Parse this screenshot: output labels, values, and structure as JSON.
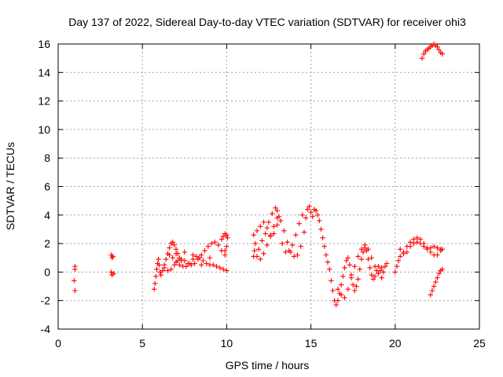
{
  "chart_data": {
    "type": "scatter",
    "title": "Day 137 of 2022, Sidereal Day-to-day VTEC variation (SDTVAR) for receiver ohi3",
    "xlabel": "GPS time / hours",
    "ylabel": "SDTVAR / TECUs",
    "xlim": [
      0,
      25
    ],
    "ylim": [
      -4,
      16
    ],
    "xticks": [
      0,
      5,
      10,
      15,
      20,
      25
    ],
    "yticks": [
      -4,
      -2,
      0,
      2,
      4,
      6,
      8,
      10,
      12,
      14,
      16
    ],
    "grid": true,
    "marker": "+",
    "color": "#ff0000",
    "series": [
      {
        "name": "SDTVAR",
        "points": [
          [
            1.0,
            0.4
          ],
          [
            1.0,
            0.2
          ],
          [
            0.95,
            -0.6
          ],
          [
            1.0,
            -1.3
          ],
          [
            3.15,
            1.2
          ],
          [
            3.2,
            1.0
          ],
          [
            3.25,
            1.1
          ],
          [
            3.15,
            0.0
          ],
          [
            3.2,
            -0.2
          ],
          [
            3.3,
            -0.1
          ],
          [
            5.7,
            -1.2
          ],
          [
            5.75,
            -0.8
          ],
          [
            5.8,
            -0.3
          ],
          [
            5.85,
            0.2
          ],
          [
            5.9,
            0.6
          ],
          [
            5.95,
            0.9
          ],
          [
            6.0,
            0.5
          ],
          [
            6.05,
            0.0
          ],
          [
            6.1,
            -0.2
          ],
          [
            6.2,
            0.1
          ],
          [
            6.3,
            0.5
          ],
          [
            6.4,
            0.9
          ],
          [
            6.5,
            1.3
          ],
          [
            6.6,
            1.7
          ],
          [
            6.7,
            2.0
          ],
          [
            6.8,
            2.1
          ],
          [
            6.9,
            1.9
          ],
          [
            7.0,
            1.6
          ],
          [
            7.1,
            1.3
          ],
          [
            7.2,
            1.0
          ],
          [
            7.3,
            0.8
          ],
          [
            6.3,
            0.3
          ],
          [
            6.5,
            0.1
          ],
          [
            6.7,
            0.2
          ],
          [
            6.9,
            0.5
          ],
          [
            7.1,
            0.8
          ],
          [
            7.3,
            0.9
          ],
          [
            7.5,
            0.8
          ],
          [
            7.7,
            0.6
          ],
          [
            7.9,
            0.5
          ],
          [
            8.1,
            0.6
          ],
          [
            8.3,
            0.9
          ],
          [
            8.5,
            1.2
          ],
          [
            8.7,
            1.5
          ],
          [
            8.9,
            1.8
          ],
          [
            9.1,
            2.0
          ],
          [
            9.3,
            2.1
          ],
          [
            9.5,
            1.9
          ],
          [
            9.7,
            1.5
          ],
          [
            9.9,
            1.2
          ],
          [
            6.6,
            1.2
          ],
          [
            6.8,
            1.0
          ],
          [
            7.0,
            0.7
          ],
          [
            7.2,
            0.5
          ],
          [
            7.4,
            0.4
          ],
          [
            7.6,
            0.4
          ],
          [
            7.8,
            0.6
          ],
          [
            8.0,
            0.9
          ],
          [
            8.2,
            1.1
          ],
          [
            8.4,
            1.0
          ],
          [
            8.6,
            0.8
          ],
          [
            8.8,
            0.6
          ],
          [
            9.0,
            0.5
          ],
          [
            9.2,
            0.5
          ],
          [
            9.4,
            0.4
          ],
          [
            9.6,
            0.3
          ],
          [
            9.8,
            0.2
          ],
          [
            10.0,
            0.1
          ],
          [
            7.0,
            1.3
          ],
          [
            7.5,
            1.4
          ],
          [
            8.0,
            1.2
          ],
          [
            8.5,
            0.5
          ],
          [
            9.0,
            1.0
          ],
          [
            9.7,
            2.3
          ],
          [
            9.8,
            2.5
          ],
          [
            9.9,
            2.7
          ],
          [
            10.0,
            2.6
          ],
          [
            10.05,
            2.4
          ],
          [
            10.0,
            1.8
          ],
          [
            9.9,
            1.5
          ],
          [
            11.6,
            1.1
          ],
          [
            11.65,
            1.5
          ],
          [
            11.7,
            2.0
          ],
          [
            11.6,
            2.6
          ],
          [
            11.8,
            2.9
          ],
          [
            12.0,
            3.2
          ],
          [
            12.2,
            3.5
          ],
          [
            12.4,
            3.1
          ],
          [
            12.6,
            2.5
          ],
          [
            12.8,
            2.7
          ],
          [
            13.0,
            3.3
          ],
          [
            13.1,
            3.9
          ],
          [
            13.0,
            4.3
          ],
          [
            12.9,
            4.5
          ],
          [
            12.7,
            4.1
          ],
          [
            12.5,
            3.5
          ],
          [
            12.3,
            2.7
          ],
          [
            12.1,
            2.2
          ],
          [
            11.9,
            1.6
          ],
          [
            11.8,
            1.1
          ],
          [
            12.0,
            0.9
          ],
          [
            12.2,
            1.3
          ],
          [
            12.4,
            1.9
          ],
          [
            12.6,
            2.6
          ],
          [
            12.8,
            3.2
          ],
          [
            13.0,
            3.8
          ],
          [
            13.2,
            3.6
          ],
          [
            13.4,
            2.9
          ],
          [
            13.6,
            2.1
          ],
          [
            13.8,
            1.4
          ],
          [
            14.0,
            1.1
          ],
          [
            14.2,
            1.2
          ],
          [
            14.4,
            1.8
          ],
          [
            14.6,
            2.8
          ],
          [
            14.7,
            3.8
          ],
          [
            14.8,
            4.4
          ],
          [
            14.9,
            4.6
          ],
          [
            15.0,
            4.2
          ],
          [
            14.5,
            4.0
          ],
          [
            14.3,
            3.4
          ],
          [
            14.1,
            2.6
          ],
          [
            13.9,
            1.9
          ],
          [
            13.7,
            1.5
          ],
          [
            13.5,
            1.4
          ],
          [
            13.3,
            2.0
          ],
          [
            15.1,
            3.9
          ],
          [
            15.2,
            4.4
          ],
          [
            15.3,
            4.3
          ],
          [
            15.4,
            4.0
          ],
          [
            15.5,
            3.6
          ],
          [
            15.6,
            3.0
          ],
          [
            15.7,
            2.4
          ],
          [
            15.8,
            1.8
          ],
          [
            15.9,
            1.2
          ],
          [
            16.0,
            0.7
          ],
          [
            16.1,
            0.2
          ],
          [
            16.2,
            -0.6
          ],
          [
            16.3,
            -1.3
          ],
          [
            16.4,
            -2.0
          ],
          [
            16.5,
            -2.3
          ],
          [
            16.6,
            -2.0
          ],
          [
            16.7,
            -1.5
          ],
          [
            16.8,
            -0.9
          ],
          [
            16.9,
            -0.3
          ],
          [
            17.0,
            0.3
          ],
          [
            17.1,
            0.8
          ],
          [
            17.2,
            1.0
          ],
          [
            17.3,
            0.5
          ],
          [
            17.4,
            -0.2
          ],
          [
            17.5,
            -0.9
          ],
          [
            17.6,
            -1.3
          ],
          [
            17.7,
            -1.0
          ],
          [
            17.8,
            -0.5
          ],
          [
            17.9,
            0.2
          ],
          [
            18.0,
            0.9
          ],
          [
            18.1,
            1.4
          ],
          [
            18.2,
            1.7
          ],
          [
            18.3,
            1.5
          ],
          [
            18.4,
            0.9
          ],
          [
            18.5,
            0.3
          ],
          [
            18.6,
            -0.2
          ],
          [
            18.7,
            -0.5
          ],
          [
            18.8,
            -0.3
          ],
          [
            18.9,
            0.1
          ],
          [
            19.0,
            0.4
          ],
          [
            19.1,
            0.1
          ],
          [
            19.2,
            -0.4
          ],
          [
            19.3,
            0.0
          ],
          [
            19.4,
            0.4
          ],
          [
            19.5,
            0.6
          ],
          [
            16.6,
            -1.2
          ],
          [
            16.8,
            -1.6
          ],
          [
            17.0,
            -1.8
          ],
          [
            17.2,
            -1.2
          ],
          [
            17.4,
            -0.4
          ],
          [
            17.6,
            0.4
          ],
          [
            17.8,
            1.1
          ],
          [
            18.0,
            1.6
          ],
          [
            18.2,
            1.9
          ],
          [
            18.4,
            1.6
          ],
          [
            18.6,
            1.0
          ],
          [
            18.8,
            0.4
          ],
          [
            19.0,
            -0.1
          ],
          [
            19.2,
            0.3
          ],
          [
            20.0,
            0.0
          ],
          [
            20.1,
            0.4
          ],
          [
            20.2,
            0.8
          ],
          [
            20.3,
            1.1
          ],
          [
            20.5,
            1.4
          ],
          [
            20.7,
            1.8
          ],
          [
            20.9,
            2.1
          ],
          [
            21.1,
            2.3
          ],
          [
            21.3,
            2.4
          ],
          [
            21.5,
            2.3
          ],
          [
            21.7,
            2.0
          ],
          [
            21.9,
            1.7
          ],
          [
            22.1,
            1.4
          ],
          [
            22.3,
            1.2
          ],
          [
            22.5,
            1.2
          ],
          [
            22.7,
            1.5
          ],
          [
            20.3,
            1.6
          ],
          [
            20.5,
            1.3
          ],
          [
            20.7,
            1.4
          ],
          [
            20.9,
            1.8
          ],
          [
            21.1,
            2.0
          ],
          [
            21.3,
            2.1
          ],
          [
            21.5,
            2.0
          ],
          [
            21.7,
            1.8
          ],
          [
            21.9,
            1.6
          ],
          [
            22.1,
            1.7
          ],
          [
            22.3,
            1.8
          ],
          [
            22.5,
            1.7
          ],
          [
            22.7,
            1.6
          ],
          [
            22.8,
            1.6
          ],
          [
            22.1,
            -1.6
          ],
          [
            22.2,
            -1.3
          ],
          [
            22.3,
            -1.0
          ],
          [
            22.4,
            -0.7
          ],
          [
            22.5,
            -0.4
          ],
          [
            22.6,
            -0.1
          ],
          [
            22.7,
            0.1
          ],
          [
            22.8,
            0.2
          ],
          [
            21.6,
            15.0
          ],
          [
            21.7,
            15.3
          ],
          [
            21.8,
            15.5
          ],
          [
            21.9,
            15.6
          ],
          [
            22.0,
            15.7
          ],
          [
            22.1,
            15.8
          ],
          [
            22.2,
            15.9
          ],
          [
            22.3,
            16.0
          ],
          [
            22.4,
            15.9
          ],
          [
            22.5,
            15.8
          ],
          [
            22.6,
            15.6
          ],
          [
            22.7,
            15.4
          ],
          [
            22.8,
            15.3
          ]
        ]
      }
    ]
  }
}
